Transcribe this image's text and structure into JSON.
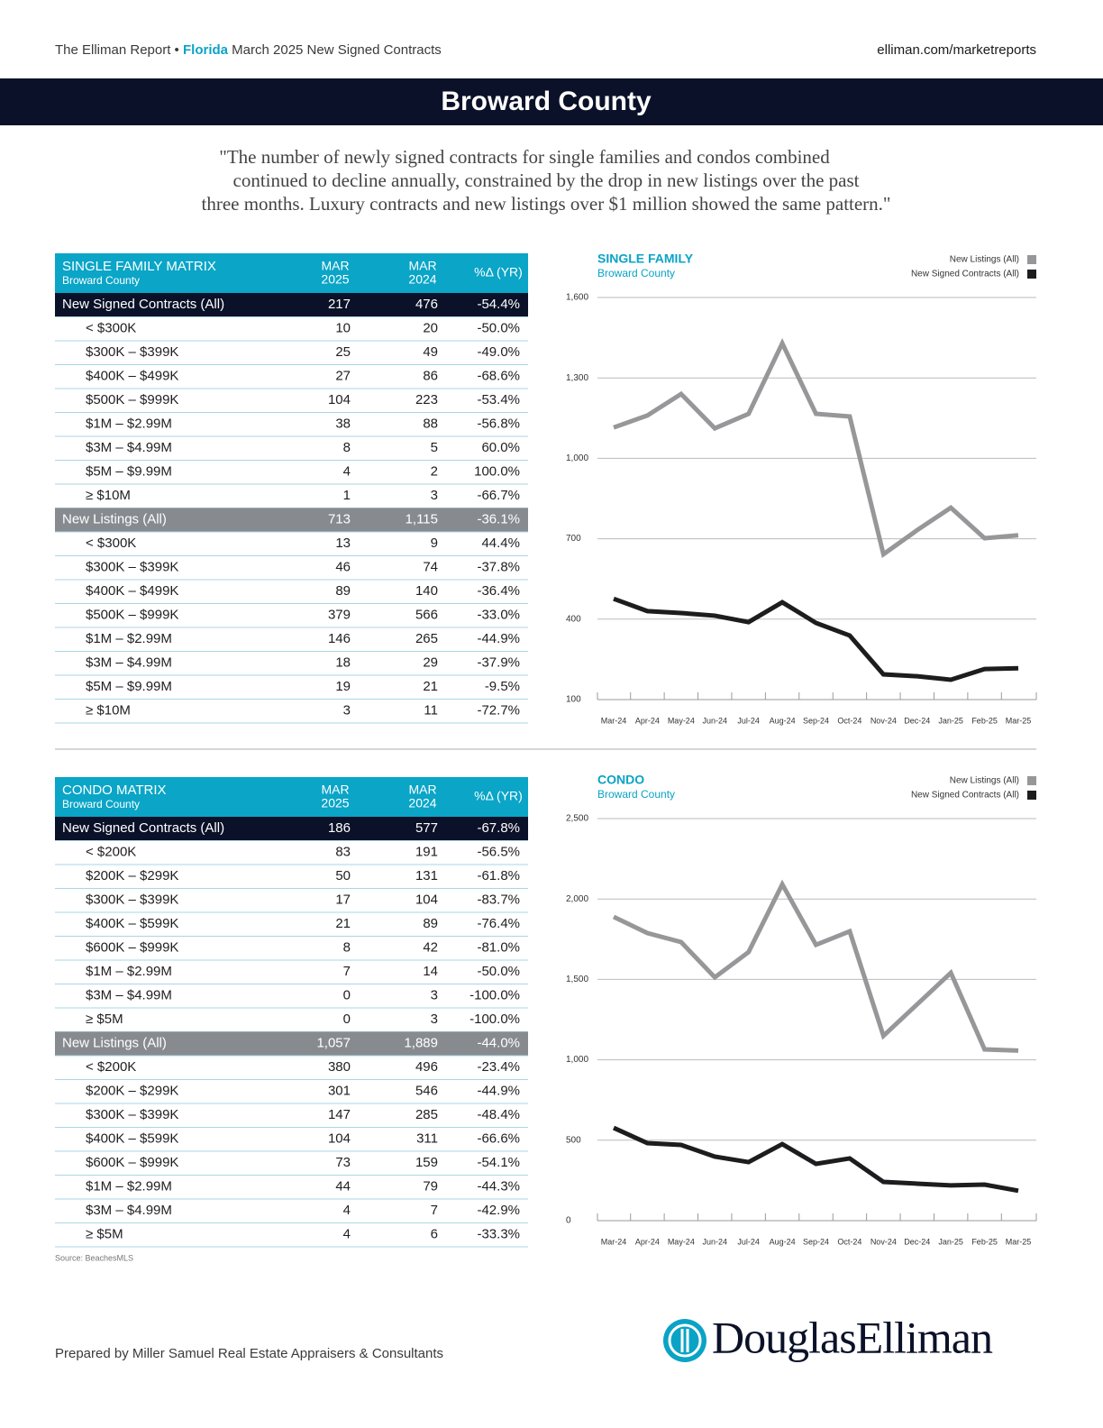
{
  "header": {
    "prefix": "The Elliman Report •",
    "region": "Florida",
    "suffix": "March 2025 New Signed Contracts",
    "url": "elliman.com/marketreports"
  },
  "banner": {
    "title": "Broward County"
  },
  "quote": {
    "lines": [
      "\"The number of newly signed contracts for single families and condos combined",
      "continued to decline annually, constrained by the drop in new listings over the past",
      "three months. Luxury contracts and new listings over $1 million showed the same pattern.\""
    ]
  },
  "tables": [
    {
      "title": "SINGLE FAMILY MATRIX",
      "subtitle": "Broward County",
      "columns": [
        {
          "month": "MAR",
          "year": "2025"
        },
        {
          "month": "MAR",
          "year": "2024"
        },
        "%Δ (YR)"
      ],
      "sections": [
        {
          "summary": [
            "New Signed Contracts (All)",
            "217",
            "476",
            "-54.4%"
          ],
          "rows": [
            [
              "< $300K",
              "10",
              "20",
              "-50.0%"
            ],
            [
              "$300K – $399K",
              "25",
              "49",
              "-49.0%"
            ],
            [
              "$400K – $499K",
              "27",
              "86",
              "-68.6%"
            ],
            [
              "$500K – $999K",
              "104",
              "223",
              "-53.4%"
            ],
            [
              "$1M – $2.99M",
              "38",
              "88",
              "-56.8%"
            ],
            [
              "$3M – $4.99M",
              "8",
              "5",
              "60.0%"
            ],
            [
              "$5M – $9.99M",
              "4",
              "2",
              "100.0%"
            ],
            [
              "≥ $10M",
              "1",
              "3",
              "-66.7%"
            ]
          ]
        },
        {
          "summary": [
            "New Listings (All)",
            "713",
            "1,115",
            "-36.1%"
          ],
          "rows": [
            [
              "< $300K",
              "13",
              "9",
              "44.4%"
            ],
            [
              "$300K – $399K",
              "46",
              "74",
              "-37.8%"
            ],
            [
              "$400K – $499K",
              "89",
              "140",
              "-36.4%"
            ],
            [
              "$500K – $999K",
              "379",
              "566",
              "-33.0%"
            ],
            [
              "$1M – $2.99M",
              "146",
              "265",
              "-44.9%"
            ],
            [
              "$3M – $4.99M",
              "18",
              "29",
              "-37.9%"
            ],
            [
              "$5M – $9.99M",
              "19",
              "21",
              "-9.5%"
            ],
            [
              "≥ $10M",
              "3",
              "11",
              "-72.7%"
            ]
          ]
        }
      ]
    },
    {
      "title": "CONDO MATRIX",
      "subtitle": "Broward County",
      "columns": [
        {
          "month": "MAR",
          "year": "2025"
        },
        {
          "month": "MAR",
          "year": "2024"
        },
        "%Δ (YR)"
      ],
      "sections": [
        {
          "summary": [
            "New Signed Contracts (All)",
            "186",
            "577",
            "-67.8%"
          ],
          "rows": [
            [
              "< $200K",
              "83",
              "191",
              "-56.5%"
            ],
            [
              "$200K – $299K",
              "50",
              "131",
              "-61.8%"
            ],
            [
              "$300K – $399K",
              "17",
              "104",
              "-83.7%"
            ],
            [
              "$400K – $599K",
              "21",
              "89",
              "-76.4%"
            ],
            [
              "$600K – $999K",
              "8",
              "42",
              "-81.0%"
            ],
            [
              "$1M – $2.99M",
              "7",
              "14",
              "-50.0%"
            ],
            [
              "$3M – $4.99M",
              "0",
              "3",
              "-100.0%"
            ],
            [
              "≥ $5M",
              "0",
              "3",
              "-100.0%"
            ]
          ]
        },
        {
          "summary": [
            "New Listings (All)",
            "1,057",
            "1,889",
            "-44.0%"
          ],
          "rows": [
            [
              "< $200K",
              "380",
              "496",
              "-23.4%"
            ],
            [
              "$200K – $299K",
              "301",
              "546",
              "-44.9%"
            ],
            [
              "$300K – $399K",
              "147",
              "285",
              "-48.4%"
            ],
            [
              "$400K – $599K",
              "104",
              "311",
              "-66.6%"
            ],
            [
              "$600K – $999K",
              "73",
              "159",
              "-54.1%"
            ],
            [
              "$1M – $2.99M",
              "44",
              "79",
              "-44.3%"
            ],
            [
              "$3M – $4.99M",
              "4",
              "7",
              "-42.9%"
            ],
            [
              "≥ $5M",
              "4",
              "6",
              "-33.3%"
            ]
          ]
        }
      ]
    }
  ],
  "chart_data": [
    {
      "type": "line",
      "title": "SINGLE FAMILY",
      "subtitle": "Broward County",
      "categories": [
        "Mar-24",
        "Apr-24",
        "May-24",
        "Jun-24",
        "Jul-24",
        "Aug-24",
        "Sep-24",
        "Oct-24",
        "Nov-24",
        "Dec-24",
        "Jan-25",
        "Feb-25",
        "Mar-25"
      ],
      "series": [
        {
          "name": "New Listings (All)",
          "color": "#97979a",
          "values": [
            1115,
            1160,
            1240,
            1112,
            1166,
            1429,
            1166,
            1156,
            642,
            732,
            816,
            702,
            713
          ]
        },
        {
          "name": "New Signed Contracts (All)",
          "color": "#1d1d1f",
          "values": [
            476,
            430,
            423,
            413,
            389,
            463,
            386,
            339,
            194,
            187,
            174,
            214,
            217
          ]
        }
      ],
      "ylim": [
        100,
        1600
      ],
      "yticks": [
        100,
        400,
        700,
        {
          "value": 1000,
          "label": "1,000"
        },
        {
          "value": 1300,
          "label": "1,300"
        },
        {
          "value": 1600,
          "label": "1,600"
        }
      ],
      "grid": true,
      "legend": "top-right"
    },
    {
      "type": "line",
      "title": "CONDO",
      "subtitle": "Broward County",
      "categories": [
        "Mar-24",
        "Apr-24",
        "May-24",
        "Jun-24",
        "Jul-24",
        "Aug-24",
        "Sep-24",
        "Oct-24",
        "Nov-24",
        "Dec-24",
        "Jan-25",
        "Feb-25",
        "Mar-25"
      ],
      "series": [
        {
          "name": "New Listings (All)",
          "color": "#97979a",
          "values": [
            1889,
            1788,
            1732,
            1513,
            1670,
            2091,
            1715,
            1799,
            1149,
            1345,
            1541,
            1065,
            1057
          ]
        },
        {
          "name": "New Signed Contracts (All)",
          "color": "#1d1d1f",
          "values": [
            577,
            482,
            471,
            398,
            364,
            476,
            353,
            387,
            241,
            230,
            219,
            224,
            186
          ]
        }
      ],
      "ylim": [
        0,
        2500
      ],
      "yticks": [
        0,
        500,
        {
          "value": 1000,
          "label": "1,000"
        },
        {
          "value": 1500,
          "label": "1,500"
        },
        {
          "value": 2000,
          "label": "2,000"
        },
        {
          "value": 2500,
          "label": "2,500"
        }
      ],
      "grid": true,
      "legend": "top-right"
    }
  ],
  "source": "Source: BeachesMLS",
  "footer": {
    "prepared": "Prepared by Miller Samuel Real Estate Appraisers & Consultants",
    "logo": "DouglasElliman"
  }
}
